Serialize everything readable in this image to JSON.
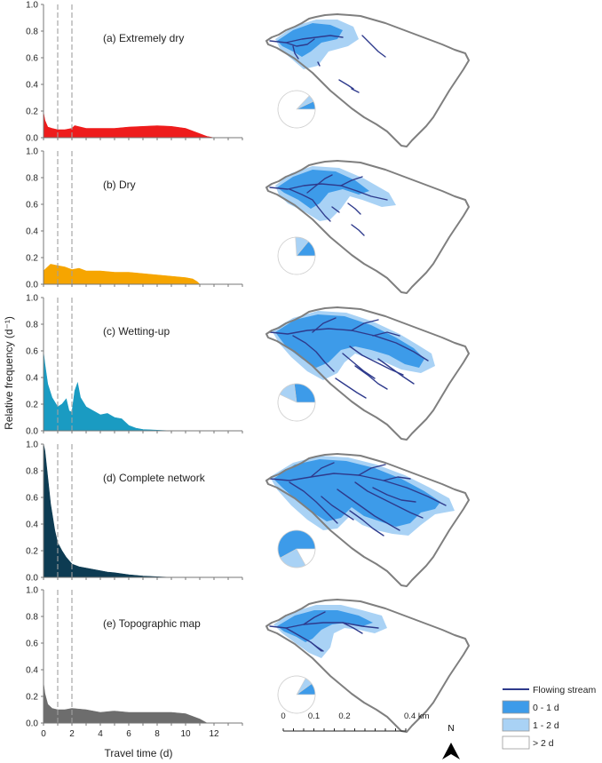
{
  "y_axis_label": "Relative frequency (d⁻¹)",
  "x_axis_label": "Travel time (d)",
  "y_ticks": [
    "0.0",
    "0.2",
    "0.4",
    "0.6",
    "0.8",
    "1.0"
  ],
  "x_ticks": [
    "0",
    "2",
    "4",
    "6",
    "8",
    "10",
    "12"
  ],
  "scale_bar": {
    "labels": [
      "0",
      "0.1",
      "0.2",
      "0.4 km"
    ]
  },
  "north_label": "N",
  "legend": {
    "stream": "Flowing stream",
    "classes": [
      {
        "label": "0 - 1 d",
        "color": "#3d9be9"
      },
      {
        "label": "1 - 2 d",
        "color": "#a9d2f5"
      },
      {
        "label": "> 2 d",
        "color": "#ffffff"
      }
    ]
  },
  "colors": {
    "stream": "#2e3a8c",
    "outline": "#7f7f7f",
    "dashed": "#a0a0a0"
  },
  "chart_data": [
    {
      "type": "area",
      "label": "(a) Extremely dry",
      "color": "#ee1c1c",
      "xlim": [
        0,
        14
      ],
      "ylim": [
        0,
        1
      ],
      "reference_lines_x": [
        1,
        2
      ],
      "x": [
        0,
        0.1,
        0.3,
        0.6,
        1.0,
        1.5,
        2.0,
        2.2,
        3,
        4,
        5,
        6,
        7,
        8,
        9,
        10,
        10.5,
        11,
        11.5,
        12
      ],
      "y": [
        0.19,
        0.13,
        0.08,
        0.07,
        0.06,
        0.06,
        0.07,
        0.09,
        0.07,
        0.07,
        0.07,
        0.08,
        0.085,
        0.09,
        0.085,
        0.07,
        0.05,
        0.03,
        0.01,
        0
      ],
      "pie": [
        {
          "class": "0 - 1 d",
          "value": 0.07
        },
        {
          "class": "1 - 2 d",
          "value": 0.06
        },
        {
          "class": "> 2 d",
          "value": 0.87
        }
      ]
    },
    {
      "type": "area",
      "label": "(b) Dry",
      "color": "#f6a500",
      "xlim": [
        0,
        14
      ],
      "ylim": [
        0,
        1
      ],
      "reference_lines_x": [
        1,
        2
      ],
      "x": [
        0,
        0.2,
        0.5,
        1.0,
        1.5,
        2.0,
        2.5,
        3,
        4,
        5,
        6,
        7,
        8,
        9,
        10,
        10.5,
        10.8,
        11
      ],
      "y": [
        0.1,
        0.12,
        0.15,
        0.14,
        0.13,
        0.11,
        0.12,
        0.1,
        0.1,
        0.09,
        0.09,
        0.08,
        0.07,
        0.06,
        0.05,
        0.04,
        0.02,
        0
      ],
      "pie": [
        {
          "class": "0 - 1 d",
          "value": 0.14
        },
        {
          "class": "1 - 2 d",
          "value": 0.12
        },
        {
          "class": "> 2 d",
          "value": 0.74
        }
      ]
    },
    {
      "type": "area",
      "label": "(c) Wetting-up",
      "color": "#1a9bc2",
      "xlim": [
        0,
        14
      ],
      "ylim": [
        0,
        1
      ],
      "reference_lines_x": [
        1,
        2
      ],
      "x": [
        0,
        0.1,
        0.3,
        0.6,
        1.0,
        1.3,
        1.6,
        1.8,
        2.0,
        2.2,
        2.4,
        2.6,
        3.0,
        3.5,
        4,
        4.5,
        5,
        5.5,
        6,
        6.5,
        7,
        8,
        9
      ],
      "y": [
        0.59,
        0.5,
        0.35,
        0.25,
        0.18,
        0.2,
        0.24,
        0.15,
        0.14,
        0.3,
        0.36,
        0.25,
        0.18,
        0.15,
        0.12,
        0.13,
        0.1,
        0.09,
        0.04,
        0.02,
        0.01,
        0.005,
        0
      ],
      "pie": [
        {
          "class": "0 - 1 d",
          "value": 0.27
        },
        {
          "class": "1 - 2 d",
          "value": 0.16
        },
        {
          "class": "> 2 d",
          "value": 0.57
        }
      ]
    },
    {
      "type": "area",
      "label": "(d) Complete network",
      "color": "#0d3b52",
      "xlim": [
        0,
        14
      ],
      "ylim": [
        0,
        1
      ],
      "reference_lines_x": [
        1,
        2
      ],
      "x": [
        0,
        0.1,
        0.3,
        0.5,
        0.8,
        1.0,
        1.3,
        1.6,
        2.0,
        2.5,
        3,
        3.5,
        4,
        4.5,
        5,
        6,
        7,
        8,
        9
      ],
      "y": [
        1.0,
        0.95,
        0.75,
        0.55,
        0.35,
        0.26,
        0.2,
        0.15,
        0.1,
        0.08,
        0.07,
        0.06,
        0.05,
        0.04,
        0.035,
        0.02,
        0.01,
        0.005,
        0
      ],
      "pie": [
        {
          "class": "0 - 1 d",
          "value": 0.58
        },
        {
          "class": "1 - 2 d",
          "value": 0.25
        },
        {
          "class": "> 2 d",
          "value": 0.17
        }
      ]
    },
    {
      "type": "area",
      "label": "(e) Topographic map",
      "color": "#6d6d6d",
      "xlim": [
        0,
        14
      ],
      "ylim": [
        0,
        1
      ],
      "reference_lines_x": [
        1,
        2
      ],
      "x": [
        0,
        0.1,
        0.3,
        0.6,
        1.0,
        1.5,
        2.0,
        3,
        4,
        5,
        6,
        7,
        8,
        9,
        10,
        10.5,
        11,
        11.5
      ],
      "y": [
        0.3,
        0.22,
        0.14,
        0.11,
        0.1,
        0.1,
        0.11,
        0.1,
        0.08,
        0.09,
        0.08,
        0.08,
        0.08,
        0.08,
        0.07,
        0.05,
        0.03,
        0
      ],
      "pie": [
        {
          "class": "0 - 1 d",
          "value": 0.1
        },
        {
          "class": "1 - 2 d",
          "value": 0.07
        },
        {
          "class": "> 2 d",
          "value": 0.83
        }
      ]
    }
  ]
}
